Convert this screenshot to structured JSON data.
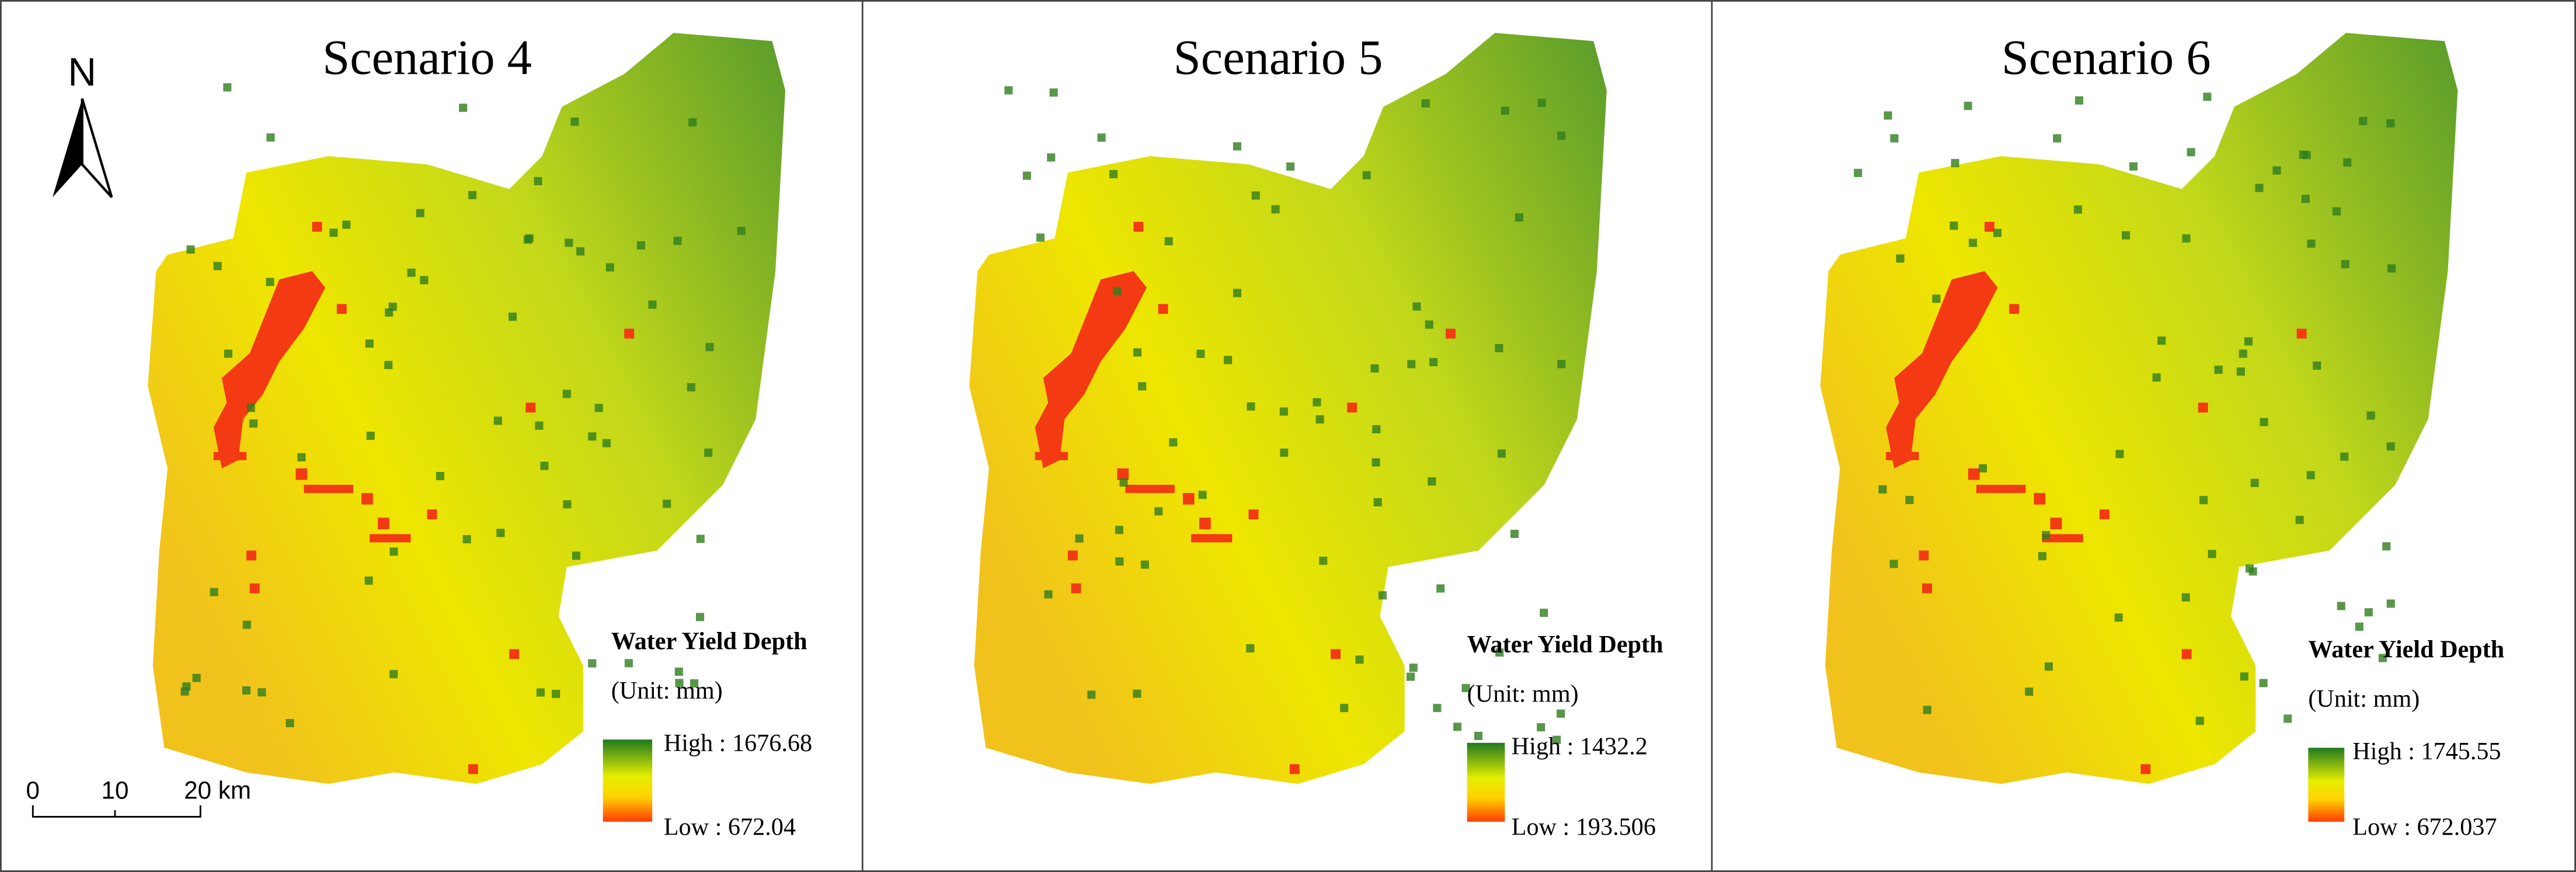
{
  "north_arrow": {
    "label": "N"
  },
  "scale_bar": {
    "labels": [
      "0",
      "10",
      "20 km"
    ]
  },
  "panels": [
    {
      "title": "Scenario 4",
      "legend": {
        "title": "Water Yield Depth",
        "unit": "(Unit: mm)",
        "high": "High : 1676.68",
        "low": "Low : 672.04"
      }
    },
    {
      "title": "Scenario 5",
      "legend": {
        "title": "Water Yield Depth",
        "unit": "(Unit: mm)",
        "high": "High : 1432.2",
        "low": "Low : 193.506"
      }
    },
    {
      "title": "Scenario 6",
      "legend": {
        "title": "Water Yield Depth",
        "unit": "(Unit: mm)",
        "high": "High : 1745.55",
        "low": "Low : 672.037"
      }
    }
  ]
}
